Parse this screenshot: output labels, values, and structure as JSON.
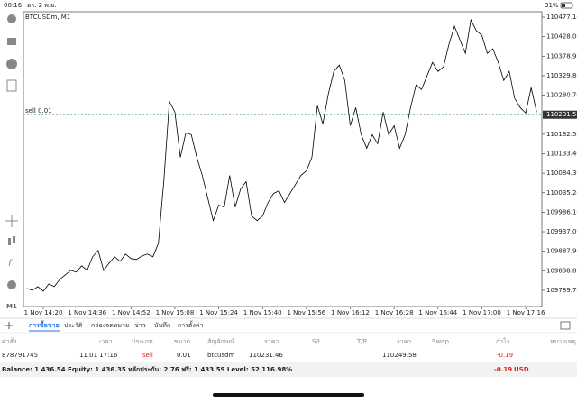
{
  "status_bar": {
    "time": "00:16",
    "date": "อา. 2 พ.ย.",
    "battery": "31%"
  },
  "toolbar": {
    "timeframe": "M1"
  },
  "chart_data": {
    "type": "line",
    "title": "BTCUSDm, M1",
    "categories": [
      null,
      null,
      null,
      "1 Nov 14:20",
      null,
      null,
      null,
      null,
      null,
      null,
      null,
      "1 Nov 14:36",
      null,
      null,
      null,
      null,
      null,
      null,
      null,
      "1 Nov 14:52",
      null,
      null,
      null,
      null,
      null,
      null,
      null,
      "1 Nov 15:08",
      null,
      null,
      null,
      null,
      null,
      null,
      null,
      "1 Nov 15:24",
      null,
      null,
      null,
      null,
      null,
      null,
      null,
      "1 Nov 15:40",
      null,
      null,
      null,
      null,
      null,
      null,
      null,
      "1 Nov 15:56",
      null,
      null,
      null,
      null,
      null,
      null,
      null,
      "1 Nov 16:12",
      null,
      null,
      null,
      null,
      null,
      null,
      null,
      "1 Nov 16:28",
      null,
      null,
      null,
      null,
      null,
      null,
      null,
      "1 Nov 16:44",
      null,
      null,
      null,
      null,
      null,
      null,
      null,
      "1 Nov 17:00",
      null,
      null,
      null,
      null,
      null,
      null,
      null,
      "1 Nov 17:16",
      null,
      null
    ],
    "series": [
      {
        "name": "BTCUSDm",
        "color": "#000000",
        "values": [
          109794.3,
          109789.7,
          109798.9,
          109787.5,
          109805.7,
          109798.9,
          109817.1,
          109828.4,
          109839.8,
          109835.3,
          109851.2,
          109839.8,
          109874.0,
          109889.9,
          109839.8,
          109858.0,
          109874.0,
          109862.6,
          109880.8,
          109869.4,
          109867.1,
          109876.2,
          109880.8,
          109874.0,
          109908.1,
          110067.4,
          110265.4,
          110238.1,
          110124.3,
          110185.8,
          110181.2,
          110124.3,
          110078.8,
          110021.9,
          109965.0,
          110003.7,
          109999.1,
          110078.8,
          109999.1,
          110044.7,
          110062.9,
          109976.4,
          109965.0,
          109976.4,
          110010.5,
          110033.3,
          110040.1,
          110010.5,
          110033.3,
          110056.0,
          110078.8,
          110090.2,
          110124.3,
          110254.1,
          110208.5,
          110283.6,
          110340.5,
          110356.5,
          110317.8,
          110204.0,
          110249.5,
          110181.2,
          110147.1,
          110181.2,
          110158.5,
          110238.1,
          110181.2,
          110204.0,
          110147.1,
          110181.2,
          110249.5,
          110306.4,
          110295.0,
          110329.2,
          110363.3,
          110340.5,
          110351.9,
          110408.8,
          110454.3,
          110420.2,
          110386.1,
          110470.3,
          110443.0,
          110431.6,
          110386.1,
          110397.4,
          110363.3,
          110317.8,
          110340.5,
          110272.3,
          110249.5,
          110235.8,
          110299.6,
          110238.1
        ]
      }
    ],
    "ylim": [
      109748.7,
      110490.8
    ],
    "yticks": [
      {
        "value": 110477.1,
        "label": "110477.10"
      },
      {
        "value": 110428,
        "label": "110428.00"
      },
      {
        "value": 110378.9,
        "label": "110378.90"
      },
      {
        "value": 110329.8,
        "label": "110329.80"
      },
      {
        "value": 110280.7,
        "label": "110280.70"
      },
      {
        "value": 110182.5,
        "label": "110182.50"
      },
      {
        "value": 110133.4,
        "label": "110133.40"
      },
      {
        "value": 110084.3,
        "label": "110084.30"
      },
      {
        "value": 110035.2,
        "label": "110035.20"
      },
      {
        "value": 109986.1,
        "label": "109986.10"
      },
      {
        "value": 109937,
        "label": "109937.00"
      },
      {
        "value": 109887.9,
        "label": "109887.90"
      },
      {
        "value": 109838.8,
        "label": "109838.80"
      },
      {
        "value": 109789.7,
        "label": "109789.70"
      }
    ],
    "position_line": {
      "label": "sell 0.01",
      "value": 110231.58,
      "color": "#5f9ea0"
    }
  },
  "tabs": [
    "การซื้อขาย",
    "ประวัติ",
    "กล่องจดหมาย",
    "ข่าว",
    "บันทึก",
    "การตั้งค่า"
  ],
  "table": {
    "headers": [
      "คำสั่ง",
      "เวลา",
      "ประเภท",
      "ขนาด",
      "สัญลักษณ์",
      "ราคา",
      "S/L",
      "T/P",
      "ราคา",
      "Swap",
      "กำไร",
      "หมายเหตุ"
    ],
    "row": {
      "order": "878791745",
      "time": "11.01 17:16",
      "type": "sell",
      "volume": "0.01",
      "symbol": "btcusdm",
      "open_price": "110231.46",
      "current_price": "110249.58",
      "profit": "-0.19"
    }
  },
  "summary": {
    "text": "Balance: 1 436.54 Equity: 1 436.35 หลักประกัน: 2.76 ฟรี: 1 433.59 Level: 52 116.98%",
    "profit": "-0.19",
    "currency": "USD"
  }
}
